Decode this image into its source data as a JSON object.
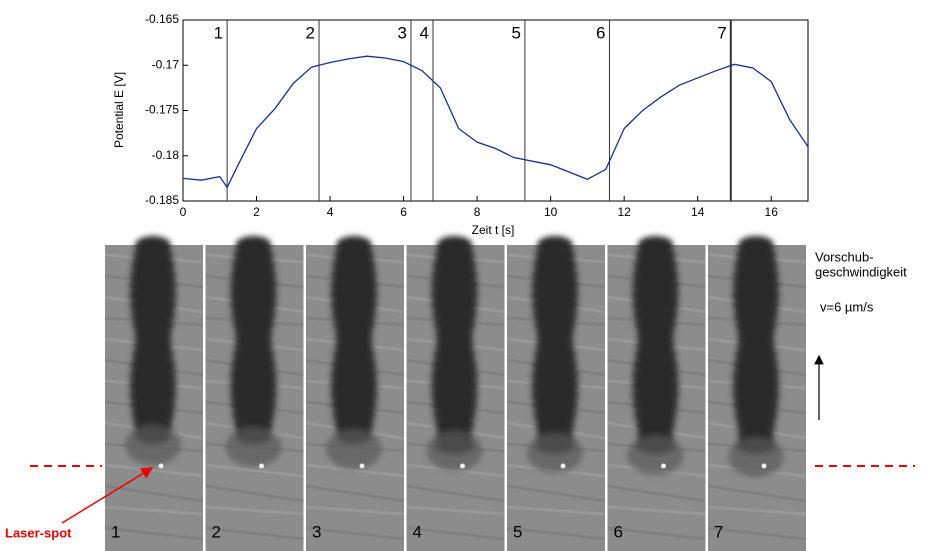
{
  "chart_data": {
    "type": "line",
    "xlabel": "Zeit t [s]",
    "ylabel": "Potential E [V]",
    "x": [
      0,
      0.5,
      1,
      1.2,
      1.5,
      2,
      2.5,
      3,
      3.5,
      4,
      4.5,
      5,
      5.5,
      6,
      6.5,
      7,
      7.5,
      8,
      8.5,
      9,
      9.5,
      10,
      10.5,
      11,
      11.5,
      12,
      12.5,
      13,
      13.5,
      14,
      14.5,
      15,
      15.5,
      16,
      16.5,
      17
    ],
    "series": [
      {
        "color": "#1a2ea0",
        "values": [
          -0.1825,
          -0.1827,
          -0.1823,
          -0.1835,
          -0.181,
          -0.177,
          -0.1748,
          -0.172,
          -0.1702,
          -0.1697,
          -0.1693,
          -0.169,
          -0.1692,
          -0.1696,
          -0.1706,
          -0.1725,
          -0.177,
          -0.1785,
          -0.1792,
          -0.1802,
          -0.1806,
          -0.181,
          -0.1818,
          -0.1826,
          -0.1815,
          -0.177,
          -0.175,
          -0.1735,
          -0.1722,
          -0.1714,
          -0.1706,
          -0.1699,
          -0.1703,
          -0.1718,
          -0.176,
          -0.179
        ]
      }
    ],
    "markers": [
      {
        "x": 1.2,
        "label": "1"
      },
      {
        "x": 3.7,
        "label": "2"
      },
      {
        "x": 6.2,
        "label": "3"
      },
      {
        "x": 6.8,
        "label": "4"
      },
      {
        "x": 9.3,
        "label": "5"
      },
      {
        "x": 11.6,
        "label": "6"
      },
      {
        "x": 14.9,
        "label": "7"
      }
    ],
    "xlim": [
      0,
      17
    ],
    "xticks": [
      0,
      2,
      4,
      6,
      8,
      10,
      12,
      14,
      16
    ],
    "ylim": [
      -0.185,
      -0.165
    ],
    "yticks": [
      -0.185,
      -0.18,
      -0.175,
      -0.17,
      -0.165
    ]
  },
  "panels": [
    "1",
    "2",
    "3",
    "4",
    "5",
    "6",
    "7"
  ],
  "annotations": {
    "feed_line1": "Vorschub-",
    "feed_line2": "geschwindigkeit",
    "speed": "v=6 µm/s",
    "laser": "Laser-spot"
  }
}
